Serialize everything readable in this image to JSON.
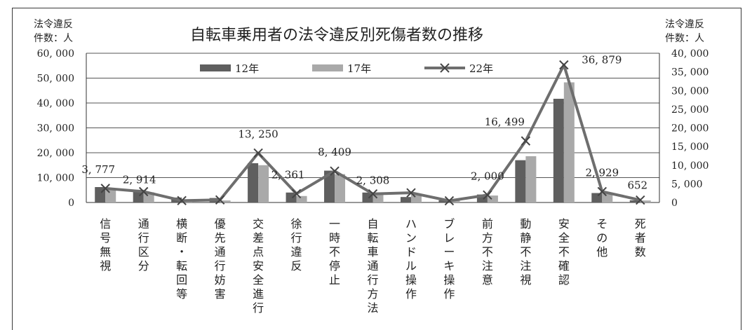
{
  "chart_data": {
    "type": "bar",
    "title": "自転車乗用者の法令違反別死傷者数の推移",
    "y_left_label": [
      "法令違反",
      "件数：人"
    ],
    "y_right_label": [
      "法令違反",
      "件数：人"
    ],
    "y_left_ticks": [
      "60, 000",
      "50, 000",
      "40, 000",
      "30, 000",
      "20, 000",
      "10, 000",
      "0"
    ],
    "y_right_ticks": [
      "40, 000",
      "35, 000",
      "30, 000",
      "25, 000",
      "20, 000",
      "15, 000",
      "10, 000",
      "5, 000",
      "0"
    ],
    "ylim_left": [
      0,
      60000
    ],
    "ylim_right": [
      0,
      40000
    ],
    "grid": true,
    "legend_position": "top",
    "categories": [
      "信号無視",
      "通行区分",
      "横断・転回等",
      "優先通行妨害",
      "交差点安全進行",
      "徐行違反",
      "一時不停止",
      "自転車通行方法",
      "ハンドル操作",
      "ブレーキ操作",
      "前方不注意",
      "動静不注視",
      "安全不確認",
      "その他",
      "死者数"
    ],
    "series": [
      {
        "name": "12年",
        "type": "bar",
        "axis": "left",
        "color": "#5f5f5f",
        "values": [
          6200,
          5100,
          2000,
          1800,
          15800,
          4000,
          12800,
          4000,
          2200,
          900,
          3200,
          17000,
          41700,
          3800,
          900
        ]
      },
      {
        "name": "17年",
        "type": "bar",
        "axis": "left",
        "color": "#a9a9a9",
        "values": [
          5400,
          4100,
          1000,
          800,
          15000,
          2600,
          11400,
          3300,
          3400,
          900,
          2800,
          18600,
          48300,
          4000,
          800
        ]
      },
      {
        "name": "22年",
        "type": "line",
        "axis": "right",
        "color": "#6e6e6e",
        "marker": "x",
        "values": [
          3777,
          2914,
          500,
          700,
          13250,
          2361,
          8409,
          2308,
          2600,
          450,
          2000,
          16499,
          36879,
          2929,
          652
        ]
      }
    ],
    "data_labels": [
      "3, 777",
      "2, 914",
      "",
      "",
      "13, 250",
      "2, 361",
      "8, 409",
      "2, 308",
      "",
      "",
      "2, 000",
      "16, 499",
      "36, 879",
      "2, 929",
      "652"
    ],
    "colors": {
      "grid": "#555555",
      "axis": "#333333",
      "frame": "#3a3a3a"
    }
  }
}
